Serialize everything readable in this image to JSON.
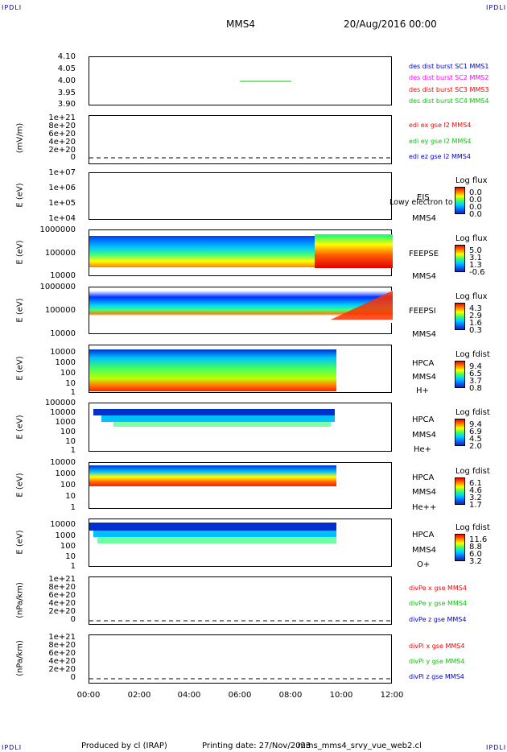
{
  "corner_label": "IPDLI",
  "header": {
    "spacecraft": "MMS4",
    "date": "20/Aug/2016 00:00"
  },
  "footer": {
    "produced_by": "Produced by cl (IRAP)",
    "printing_date": "Printing date: 27/Nov/2023",
    "script": "mms_mms4_srvy_vue_web2.cl"
  },
  "colors": {
    "red": "#ff0000",
    "green": "#00cc00",
    "blue": "#0000cc",
    "magenta": "#ff00ff"
  },
  "chart_data": [
    {
      "type": "line",
      "panel": "des dist burst",
      "ylim": [
        3.9,
        4.1
      ],
      "yticks": [
        "4.10",
        "4.05",
        "4.00",
        "3.95",
        "3.90"
      ],
      "legend": [
        {
          "label": "des dist burst SC1 MMS1",
          "color": "#0000cc"
        },
        {
          "label": "des dist burst SC2 MMS2",
          "color": "#ff00ff"
        },
        {
          "label": "des dist burst SC3 MMS3",
          "color": "#ff0000"
        },
        {
          "label": "des dist burst SC4 MMS4",
          "color": "#00cc00"
        }
      ],
      "series": [
        {
          "name": "des dist burst SC4 MMS4",
          "x": [
            "06:00",
            "07:56"
          ],
          "y": [
            4.0,
            4.0
          ],
          "color": "#00cc00"
        }
      ]
    },
    {
      "type": "line",
      "panel": "edi",
      "ylabel": "(mV/m)",
      "yticks": [
        "1e+21",
        "8e+20",
        "6e+20",
        "4e+20",
        "2e+20",
        "0"
      ],
      "legend": [
        {
          "label": "edi ex gse l2 MMS4",
          "color": "#ff0000"
        },
        {
          "label": "edi ey gse l2 MMS4",
          "color": "#00cc00"
        },
        {
          "label": "edi ez gse l2 MMS4",
          "color": "#0000cc"
        }
      ],
      "zero_line": "dashed"
    },
    {
      "type": "heatmap",
      "panel": "EIS",
      "ylabel": "E (eV)",
      "yticks": [
        "1e+07",
        "1e+06",
        "1e+05",
        "1e+04"
      ],
      "labels": [
        "EIS",
        "MMS4"
      ],
      "overlay_text": "Lowy electron to",
      "colorbar": {
        "title": "Log flux",
        "ticks": [
          "0.0",
          "0.0",
          "0.0",
          "0.0"
        ]
      }
    },
    {
      "type": "heatmap",
      "panel": "FEEPSE",
      "ylabel": "E (eV)",
      "yticks": [
        "1000000",
        "100000",
        "10000"
      ],
      "labels": [
        "FEEPSE",
        "MMS4"
      ],
      "colorbar": {
        "title": "Log flux",
        "ticks": [
          "5.0",
          "3.1",
          "1.3",
          "-0.6"
        ]
      }
    },
    {
      "type": "heatmap",
      "panel": "FEEPSI",
      "ylabel": "E (eV)",
      "yticks": [
        "1000000",
        "100000",
        "10000"
      ],
      "labels": [
        "FEEPSI",
        "MMS4"
      ],
      "colorbar": {
        "title": "Log flux",
        "ticks": [
          "4.3",
          "2.9",
          "1.6",
          "0.3"
        ]
      }
    },
    {
      "type": "heatmap",
      "panel": "HPCA H+",
      "ylabel": "E (eV)",
      "yticks": [
        "10000",
        "1000",
        "100",
        "10",
        "1"
      ],
      "labels": [
        "HPCA",
        "MMS4",
        "H+"
      ],
      "colorbar": {
        "title": "Log fdist",
        "ticks": [
          "9.4",
          "6.5",
          "3.7",
          "0.8"
        ]
      }
    },
    {
      "type": "heatmap",
      "panel": "HPCA He+",
      "ylabel": "E (eV)",
      "yticks": [
        "100000",
        "10000",
        "1000",
        "100",
        "10",
        "1"
      ],
      "labels": [
        "HPCA",
        "MMS4",
        "He+"
      ],
      "colorbar": {
        "title": "Log fdist",
        "ticks": [
          "9.4",
          "6.9",
          "4.5",
          "2.0"
        ]
      }
    },
    {
      "type": "heatmap",
      "panel": "HPCA He++",
      "ylabel": "E (eV)",
      "yticks": [
        "10000",
        "1000",
        "100",
        "10",
        "1"
      ],
      "labels": [
        "HPCA",
        "MMS4",
        "He++"
      ],
      "colorbar": {
        "title": "Log fdist",
        "ticks": [
          "6.1",
          "4.6",
          "3.2",
          "1.7"
        ]
      }
    },
    {
      "type": "heatmap",
      "panel": "HPCA O+",
      "ylabel": "E (eV)",
      "yticks": [
        "10000",
        "1000",
        "100",
        "10",
        "1"
      ],
      "labels": [
        "HPCA",
        "MMS4",
        "O+"
      ],
      "colorbar": {
        "title": "Log fdist",
        "ticks": [
          "11.6",
          "8.8",
          "6.0",
          "3.2"
        ]
      }
    },
    {
      "type": "line",
      "panel": "divPe",
      "ylabel": "(nPa/km)",
      "yticks": [
        "1e+21",
        "8e+20",
        "6e+20",
        "4e+20",
        "2e+20",
        "0"
      ],
      "legend": [
        {
          "label": "divPe x gse MMS4",
          "color": "#ff0000"
        },
        {
          "label": "divPe y gse MMS4",
          "color": "#00cc00"
        },
        {
          "label": "divPe z gse MMS4",
          "color": "#0000cc"
        }
      ],
      "zero_line": "dashed"
    },
    {
      "type": "line",
      "panel": "divPi",
      "ylabel": "(nPa/km)",
      "yticks": [
        "1e+21",
        "8e+20",
        "6e+20",
        "4e+20",
        "2e+20",
        "0"
      ],
      "legend": [
        {
          "label": "divPi x gse MMS4",
          "color": "#ff0000"
        },
        {
          "label": "divPi y gse MMS4",
          "color": "#00cc00"
        },
        {
          "label": "divPi z gse MMS4",
          "color": "#0000cc"
        }
      ],
      "zero_line": "dashed"
    }
  ],
  "x_axis": {
    "ticks": [
      "00:00",
      "02:00",
      "04:00",
      "06:00",
      "08:00",
      "10:00",
      "12:00"
    ]
  }
}
